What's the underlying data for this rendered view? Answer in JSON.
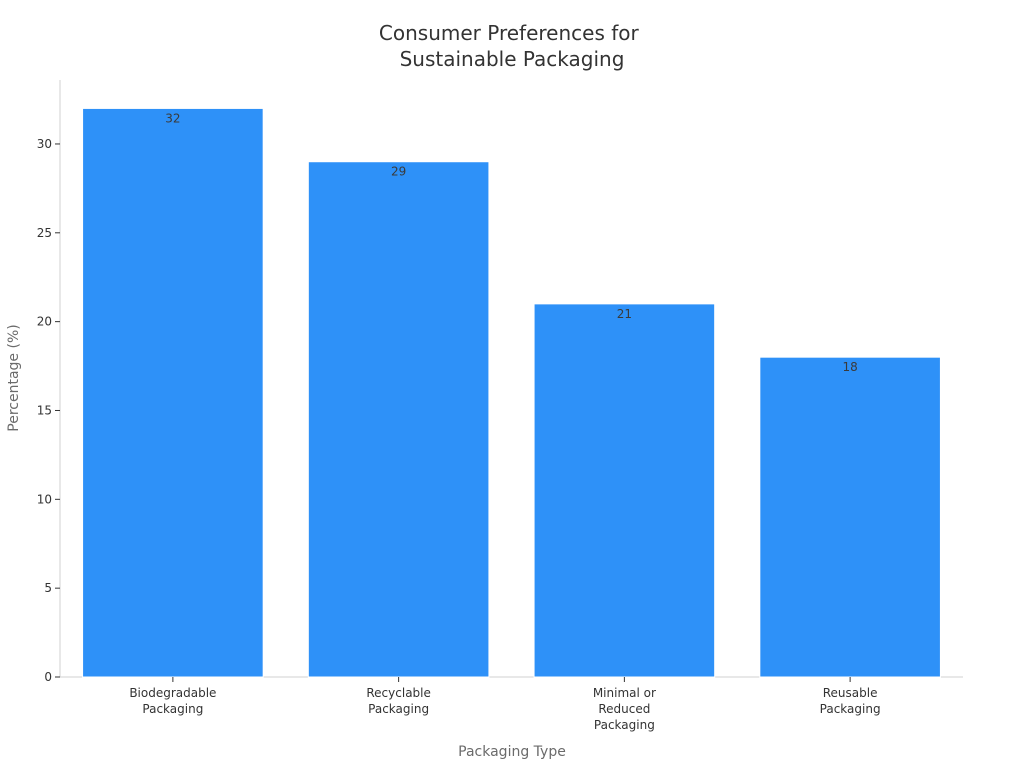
{
  "chart_data": {
    "type": "bar",
    "title": "Consumer Preferences for Sustainable Packaging",
    "title_lines": [
      "Consumer Preferences for",
      "Sustainable Packaging"
    ],
    "xlabel": "Packaging Type",
    "ylabel": "Percentage (%)",
    "categories": [
      "Biodegradable Packaging",
      "Recyclable Packaging",
      "Minimal or Reduced Packaging",
      "Reusable Packaging"
    ],
    "category_lines": [
      [
        "Biodegradable",
        "Packaging"
      ],
      [
        "Recyclable",
        "Packaging"
      ],
      [
        "Minimal or",
        "Reduced",
        "Packaging"
      ],
      [
        "Reusable",
        "Packaging"
      ]
    ],
    "values": [
      32,
      29,
      21,
      18
    ],
    "ylim": [
      0,
      33.6
    ],
    "yticks": [
      0,
      5,
      10,
      15,
      20,
      25,
      30
    ],
    "bar_color": "#2e91f8",
    "grid": false,
    "data_labels": true
  }
}
